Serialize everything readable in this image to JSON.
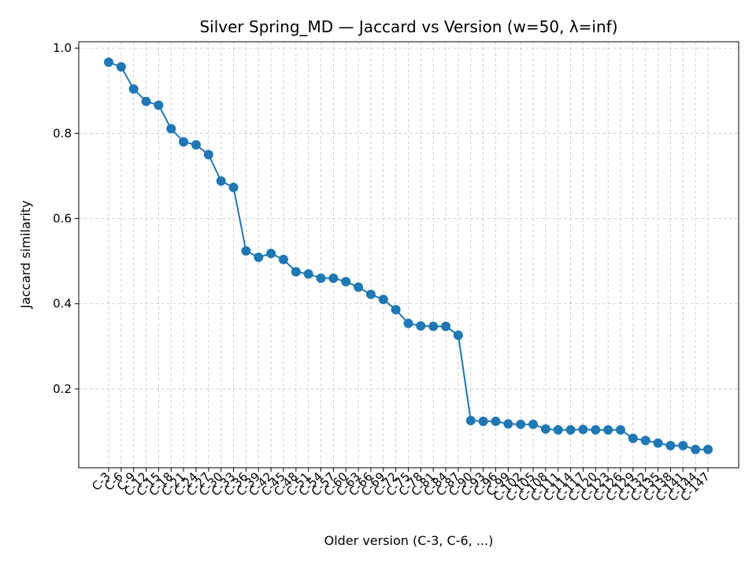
{
  "chart_data": {
    "type": "line",
    "title": "Silver Spring_MD — Jaccard vs Version (w=50, λ=inf)",
    "xlabel": "Older version (C-3, C-6, ...)",
    "ylabel": "Jaccard similarity",
    "ylim": [
      0.015,
      1.015
    ],
    "yticks": [
      "0.2",
      "0.4",
      "0.6",
      "0.8",
      "1.0"
    ],
    "grid": true,
    "series_color": "#1f77b4",
    "categories": [
      "C-3",
      "C-6",
      "C-9",
      "C-12",
      "C-15",
      "C-18",
      "C-21",
      "C-24",
      "C-27",
      "C-30",
      "C-33",
      "C-36",
      "C-39",
      "C-42",
      "C-45",
      "C-48",
      "C-51",
      "C-54",
      "C-57",
      "C-60",
      "C-63",
      "C-66",
      "C-69",
      "C-72",
      "C-75",
      "C-78",
      "C-81",
      "C-84",
      "C-87",
      "C-90",
      "C-93",
      "C-96",
      "C-99",
      "C-102",
      "C-105",
      "C-108",
      "C-111",
      "C-114",
      "C-117",
      "C-120",
      "C-123",
      "C-126",
      "C-129",
      "C-132",
      "C-135",
      "C-138",
      "C-141",
      "C-144",
      "C-147"
    ],
    "values": [
      0.967,
      0.956,
      0.904,
      0.875,
      0.866,
      0.811,
      0.78,
      0.773,
      0.75,
      0.688,
      0.673,
      0.524,
      0.509,
      0.518,
      0.504,
      0.475,
      0.47,
      0.46,
      0.46,
      0.452,
      0.439,
      0.422,
      0.41,
      0.386,
      0.354,
      0.348,
      0.347,
      0.347,
      0.326,
      0.126,
      0.124,
      0.124,
      0.118,
      0.117,
      0.117,
      0.106,
      0.104,
      0.104,
      0.105,
      0.104,
      0.104,
      0.104,
      0.084,
      0.079,
      0.073,
      0.067,
      0.067,
      0.058,
      0.058
    ]
  }
}
